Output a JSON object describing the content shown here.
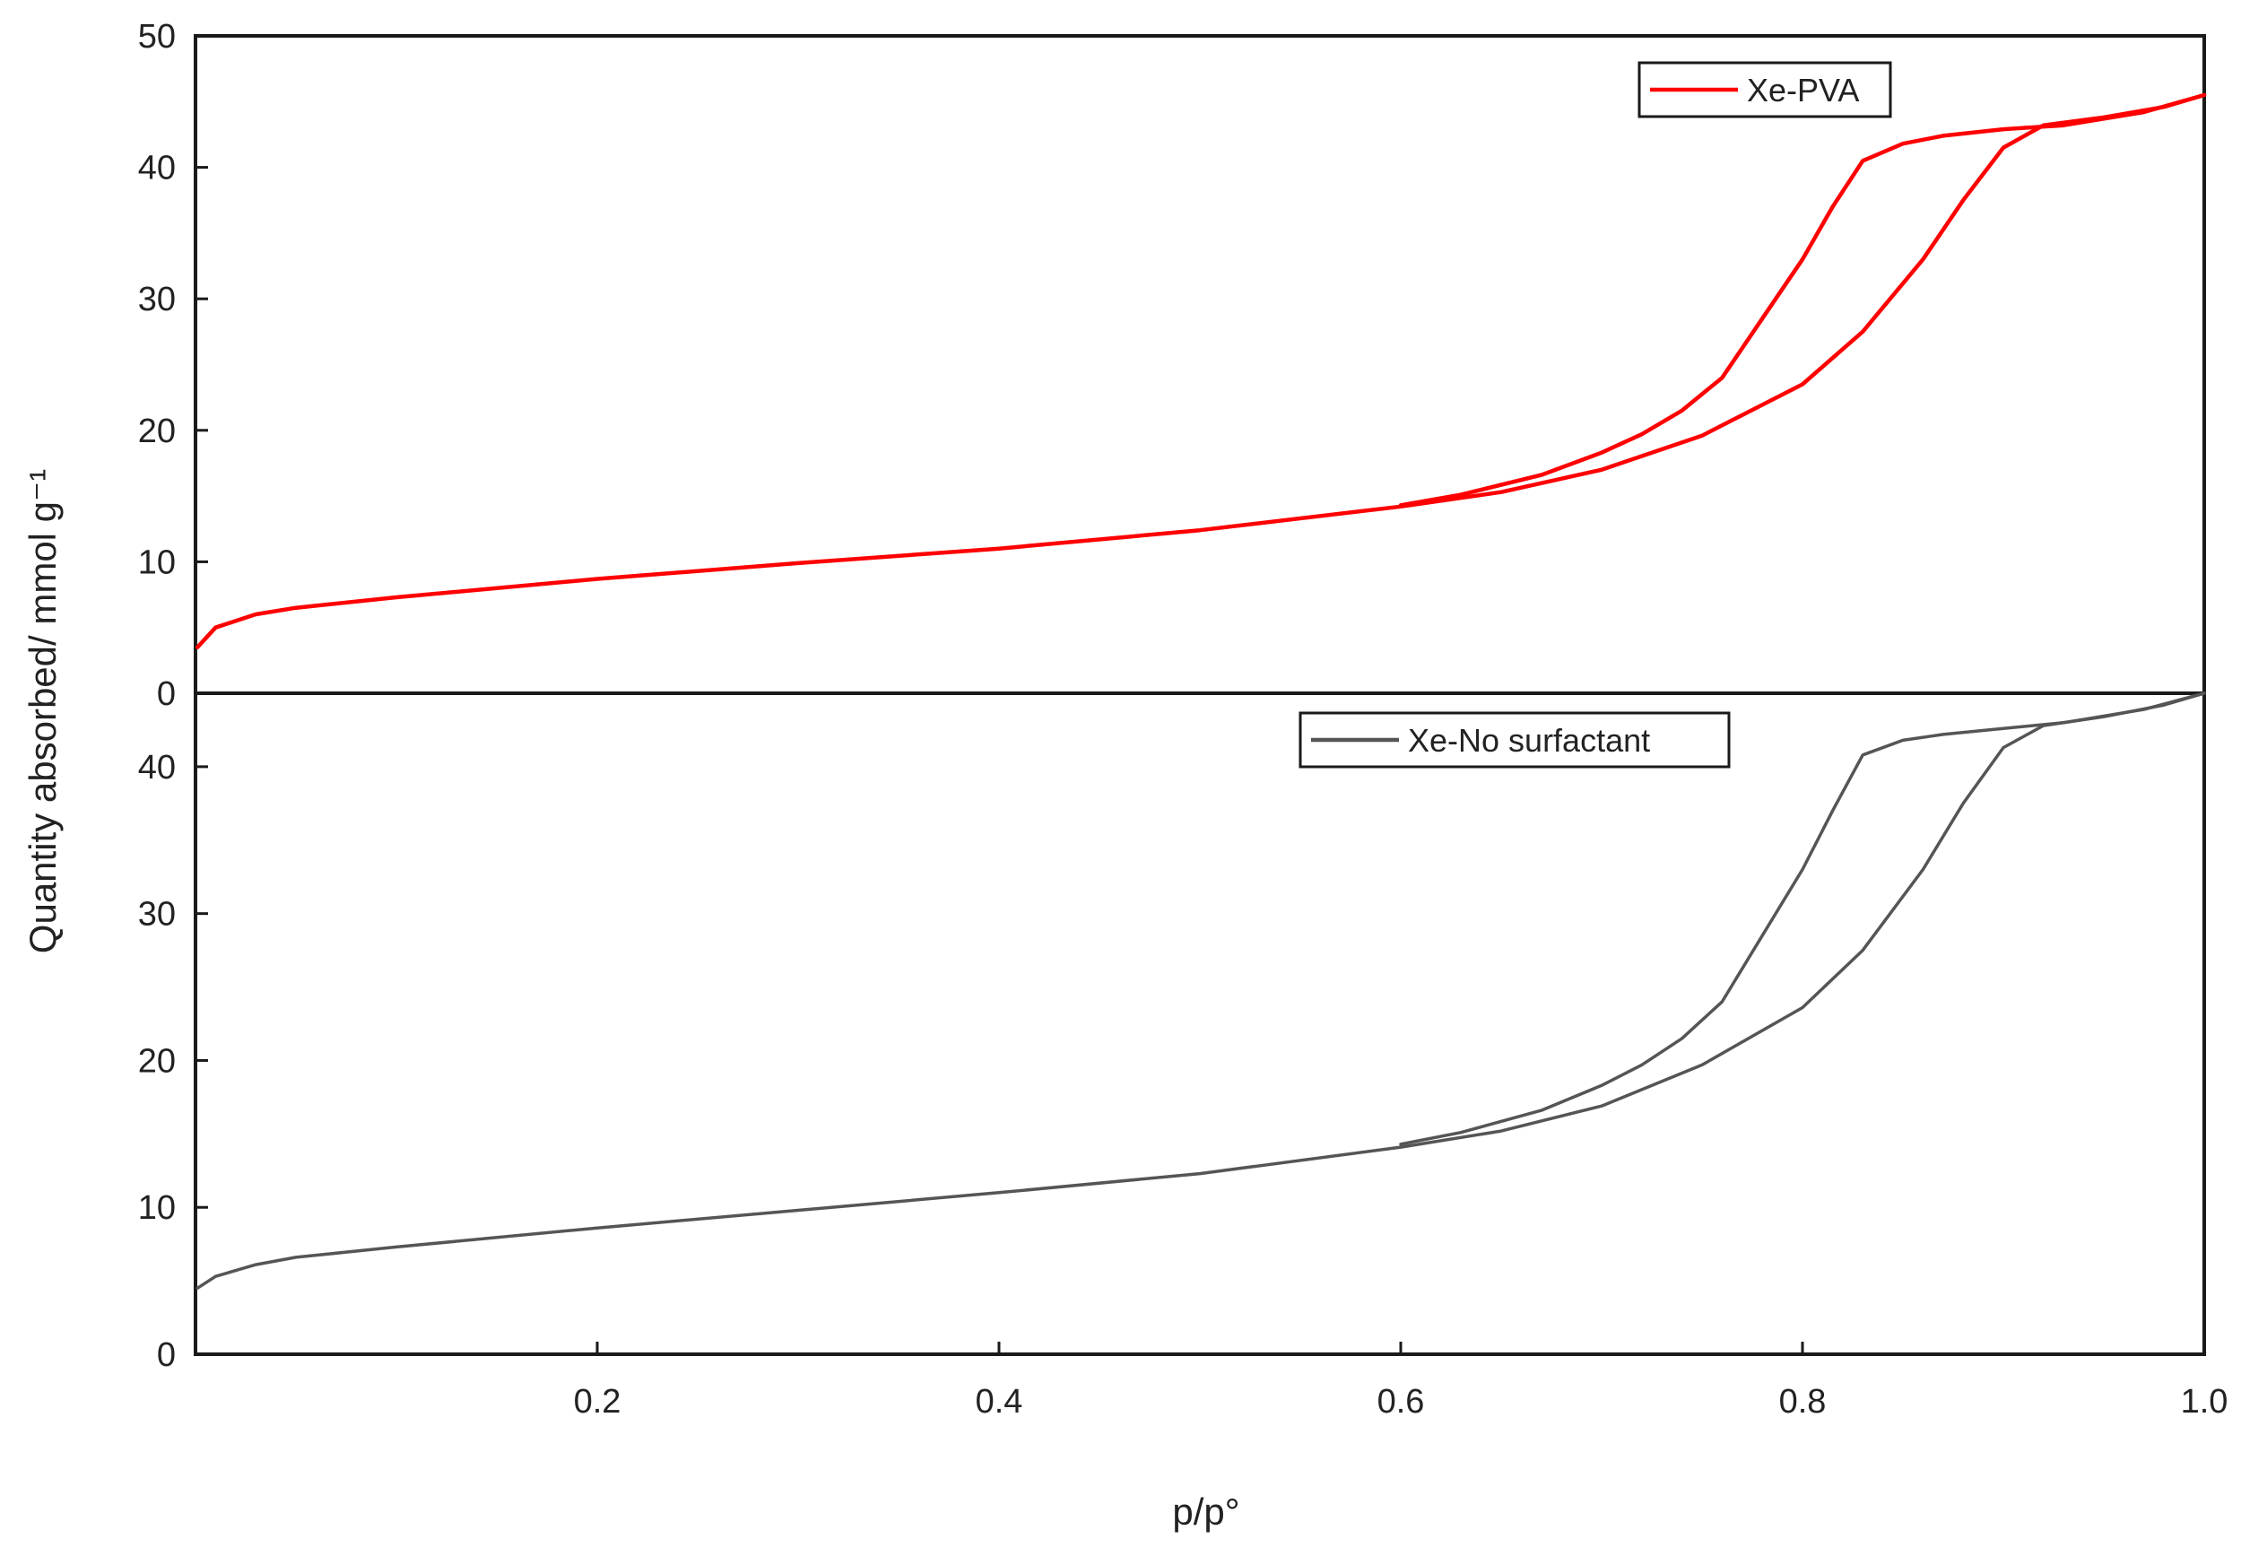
{
  "chart_data": [
    {
      "type": "line",
      "panel": "top",
      "title": "",
      "xlabel": "",
      "ylabel": "",
      "xlim": [
        0,
        1.0
      ],
      "ylim": [
        0,
        50
      ],
      "yticks": [
        "0",
        "10",
        "20",
        "30",
        "40",
        "50"
      ],
      "grid": false,
      "legend_position": "top-right",
      "series": [
        {
          "name": "Xe-PVA",
          "color": "#ff0000",
          "branch": "adsorption",
          "x": [
            0.001,
            0.01,
            0.03,
            0.05,
            0.1,
            0.2,
            0.3,
            0.4,
            0.5,
            0.6,
            0.65,
            0.7,
            0.75,
            0.8,
            0.83,
            0.86,
            0.88,
            0.9,
            0.92,
            0.95,
            0.98,
            1.0
          ],
          "y": [
            3.5,
            5.0,
            6.0,
            6.5,
            7.3,
            8.7,
            9.9,
            11.0,
            12.4,
            14.2,
            15.3,
            17.0,
            19.6,
            23.5,
            27.5,
            33.0,
            37.5,
            41.5,
            43.2,
            43.8,
            44.6,
            45.5
          ]
        },
        {
          "name": "",
          "color": "#ff0000",
          "branch": "desorption",
          "x": [
            1.0,
            0.97,
            0.93,
            0.9,
            0.87,
            0.85,
            0.83,
            0.815,
            0.8,
            0.78,
            0.76,
            0.74,
            0.72,
            0.7,
            0.67,
            0.63,
            0.6
          ],
          "y": [
            45.5,
            44.2,
            43.2,
            42.9,
            42.4,
            41.8,
            40.5,
            37.0,
            33.0,
            28.5,
            24.0,
            21.5,
            19.7,
            18.3,
            16.6,
            15.1,
            14.3
          ]
        }
      ]
    },
    {
      "type": "line",
      "panel": "bottom",
      "title": "",
      "xlabel": "p/p°",
      "ylabel": "Quantity absorbed/ mmol g⁻¹",
      "xlim": [
        0,
        1.0
      ],
      "ylim": [
        0,
        45
      ],
      "xticks": [
        "0.2",
        "0.4",
        "0.6",
        "0.8",
        "1.0"
      ],
      "yticks": [
        "0",
        "10",
        "20",
        "30",
        "40"
      ],
      "grid": false,
      "legend_position": "top-center",
      "series": [
        {
          "name": "Xe-No surfactant",
          "color": "#555555",
          "branch": "adsorption",
          "x": [
            0.001,
            0.01,
            0.03,
            0.05,
            0.1,
            0.2,
            0.3,
            0.4,
            0.5,
            0.6,
            0.65,
            0.7,
            0.75,
            0.8,
            0.83,
            0.86,
            0.88,
            0.9,
            0.92,
            0.95,
            0.98,
            1.0
          ],
          "y": [
            4.5,
            5.3,
            6.1,
            6.6,
            7.3,
            8.6,
            9.8,
            11.0,
            12.3,
            14.1,
            15.2,
            16.9,
            19.7,
            23.6,
            27.5,
            33.0,
            37.5,
            41.3,
            42.8,
            43.4,
            44.2,
            45.0
          ]
        },
        {
          "name": "",
          "color": "#555555",
          "branch": "desorption",
          "x": [
            1.0,
            0.97,
            0.93,
            0.9,
            0.87,
            0.85,
            0.83,
            0.815,
            0.8,
            0.78,
            0.76,
            0.74,
            0.72,
            0.7,
            0.67,
            0.63,
            0.6
          ],
          "y": [
            45.0,
            43.9,
            43.0,
            42.6,
            42.2,
            41.8,
            40.8,
            37.0,
            33.0,
            28.5,
            24.0,
            21.5,
            19.7,
            18.3,
            16.6,
            15.1,
            14.3
          ]
        }
      ]
    }
  ]
}
